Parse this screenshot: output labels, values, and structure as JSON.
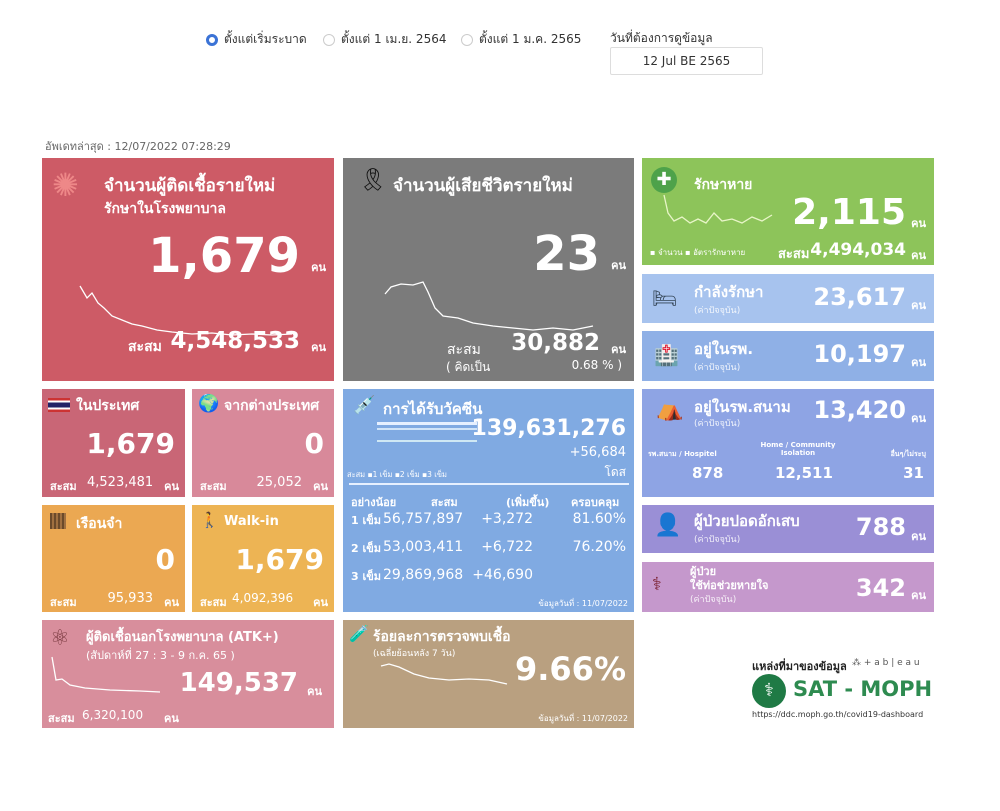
{
  "filters": {
    "options": [
      {
        "label": "ตั้งแต่เริ่มระบาด",
        "selected": true
      },
      {
        "label": "ตั้งแต่ 1 เม.ย. 2564",
        "selected": false
      },
      {
        "label": "ตั้งแต่ 1 ม.ค. 2565",
        "selected": false
      }
    ],
    "date_label": "วันที่ต้องการดูข้อมูล",
    "date_value": "12 Jul BE 2565"
  },
  "updated": "อัพเดทล่าสุด : 12/07/2022 07:28:29",
  "unit": "คน",
  "cum_label": "สะสม",
  "new_cases": {
    "title": "จำนวนผู้ติดเชื้อรายใหม่",
    "subtitle": "รักษาในโรงพยาบาล",
    "value": "1,679",
    "cumulative": "4,548,533",
    "color": "#cd5b66"
  },
  "deaths": {
    "title": "จำนวนผู้เสียชีวิตรายใหม่",
    "value": "23",
    "cumulative": "30,882",
    "pct_label": "( คิดเป็น",
    "pct": "0.68 % )",
    "color": "#7b7b7b"
  },
  "recovered": {
    "title": "รักษาหาย",
    "value": "2,115",
    "cumulative": "4,494,034",
    "legend": [
      "จำนวน",
      "อัตรารักษาหาย"
    ],
    "color": "#8dc45a"
  },
  "current": "(ค่าปัจจุบัน)",
  "treating": {
    "title": "กำลังรักษา",
    "value": "23,617"
  },
  "in_hospital": {
    "title": "อยู่ในรพ.",
    "value": "10,197"
  },
  "field_hospital": {
    "title": "อยู่ในรพ.สนาม",
    "value": "13,420",
    "cols": [
      {
        "label": "รพ.สนาม / Hospitel",
        "value": "878"
      },
      {
        "label": "Home / Community Isolation",
        "value": "12,511"
      },
      {
        "label": "อื่นๆ/ไม่ระบุ",
        "value": "31"
      }
    ]
  },
  "pneumonia": {
    "title": "ผู้ป่วยปอดอักเสบ",
    "value": "788"
  },
  "ventilator": {
    "title1": "ผู้ป่วย",
    "title2": "ใช้ท่อช่วยหายใจ",
    "value": "342"
  },
  "domestic": {
    "title": "ในประเทศ",
    "value": "1,679",
    "cumulative": "4,523,481"
  },
  "abroad": {
    "title": "จากต่างประเทศ",
    "value": "0",
    "cumulative": "25,052"
  },
  "prison": {
    "title": "เรือนจำ",
    "value": "0",
    "cumulative": "95,933"
  },
  "walkin": {
    "title": "Walk-in",
    "value": "1,679",
    "cumulative": "4,092,396"
  },
  "vaccine": {
    "title": "การได้รับวัคซีน",
    "total": "139,631,276",
    "increase": "+56,684",
    "dose_unit": "โดส",
    "legend": [
      "สะสม",
      "1 เข็ม",
      "2 เข็ม",
      "3 เข็ม"
    ],
    "headers": [
      "อย่างน้อย",
      "สะสม",
      "(เพิ่มขึ้น)",
      "ครอบคลุม"
    ],
    "rows": [
      {
        "dose": "1 เข็ม",
        "cum": "56,757,897",
        "inc": "+3,272",
        "cov": "81.60%"
      },
      {
        "dose": "2 เข็ม",
        "cum": "53,003,411",
        "inc": "+6,722",
        "cov": "76.20%"
      },
      {
        "dose": "3 เข็ม",
        "cum": "29,869,968",
        "inc": "+46,690",
        "cov": ""
      }
    ],
    "date": "ข้อมูลวันที่ : 11/07/2022"
  },
  "atk": {
    "title": "ผู้ติดเชื้อนอกโรงพยาบาล (ATK+)",
    "week": "(สัปดาห์ที่ 27  :  3 - 9 ก.ค. 65  )",
    "value": "149,537",
    "cumulative": "6,320,100"
  },
  "positivity": {
    "title": "ร้อยละการตรวจพบเชื้อ",
    "subtitle": "(เฉลี่ยย้อนหลัง 7 วัน)",
    "value": "9.66%",
    "date": "ข้อมูลวันที่ : 11/07/2022"
  },
  "source": {
    "label": "แหล่งที่มาของข้อมูล",
    "tableau": "+ a b | e a u",
    "logo": "SAT - MOPH",
    "url": "https://ddc.moph.go.th/covid19-dashboard"
  }
}
